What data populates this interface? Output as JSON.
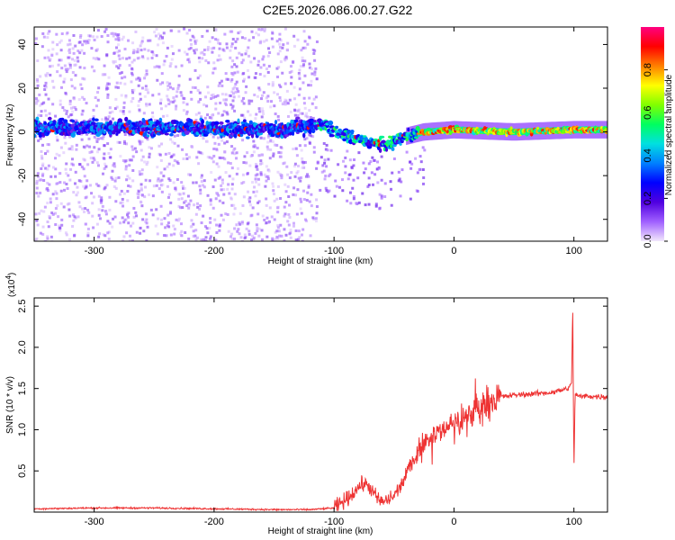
{
  "title": "C2E5.2026.086.00.27.G22",
  "chart_data": [
    {
      "type": "heatmap",
      "xlabel": "Height of straight line (km)",
      "ylabel": "Frequency (Hz)",
      "xlim": [
        -350,
        128
      ],
      "ylim": [
        -50,
        48
      ],
      "xticks": [
        -300,
        -200,
        -100,
        0,
        100
      ],
      "xtick_labels": [
        "-300",
        "-200",
        "-100",
        "0",
        "100"
      ],
      "yticks": [
        -40,
        -20,
        0,
        20,
        40
      ],
      "ytick_labels": [
        "-40",
        "-20",
        "0",
        "20",
        "40"
      ],
      "colorbar": {
        "label": "Normalized spectral amplitude",
        "range": [
          0,
          1
        ],
        "ticks": [
          0,
          0.2,
          0.4,
          0.6,
          0.8
        ],
        "tick_labels": [
          "0.0",
          "0.2",
          "0.4",
          "0.6",
          "0.8"
        ],
        "colormap": [
          "#f2e8fc",
          "#a060ff",
          "#5000e0",
          "#0000ff",
          "#0080ff",
          "#00e0e0",
          "#00ff60",
          "#80ff00",
          "#ffff00",
          "#ff8000",
          "#ff0000",
          "#ff0080"
        ]
      },
      "ridge": {
        "description_points": [
          {
            "x": -350,
            "y": 2
          },
          {
            "x": -250,
            "y": 2
          },
          {
            "x": -150,
            "y": 1
          },
          {
            "x": -110,
            "y": 3
          },
          {
            "x": -90,
            "y": -2
          },
          {
            "x": -70,
            "y": -5
          },
          {
            "x": -55,
            "y": -6
          },
          {
            "x": -40,
            "y": -2
          },
          {
            "x": -25,
            "y": 0
          },
          {
            "x": 0,
            "y": 1
          },
          {
            "x": 50,
            "y": 0
          },
          {
            "x": 100,
            "y": 1
          },
          {
            "x": 128,
            "y": 1
          }
        ]
      },
      "grid": false
    },
    {
      "type": "line",
      "xlabel": "Height of straight line (km)",
      "ylabel": "SNR (10 * v/v)",
      "scale_label": "(x10",
      "scale_exponent": "4",
      "xlim": [
        -350,
        128
      ],
      "ylim": [
        0,
        2.6
      ],
      "xticks": [
        -300,
        -200,
        -100,
        0,
        100
      ],
      "xtick_labels": [
        "-300",
        "-200",
        "-100",
        "0",
        "100"
      ],
      "yticks": [
        0.5,
        1.0,
        1.5,
        2.0,
        2.5
      ],
      "ytick_labels": [
        "0.5",
        "1.0",
        "1.5",
        "2.0",
        "2.5"
      ],
      "color": "#ee3333",
      "series": [
        {
          "x": [
            -350,
            -300,
            -250,
            -200,
            -150,
            -120,
            -100,
            -95,
            -90,
            -85,
            -80,
            -75,
            -70,
            -65,
            -60,
            -55,
            -50,
            -45,
            -40,
            -35,
            -30,
            -25,
            -20,
            -15,
            -10,
            -5,
            0,
            5,
            10,
            15,
            20,
            25,
            30,
            35,
            40,
            50,
            60,
            70,
            80,
            90,
            95,
            98,
            99,
            100,
            101,
            102,
            105,
            110,
            120,
            128
          ],
          "y": [
            0.04,
            0.05,
            0.05,
            0.04,
            0.03,
            0.03,
            0.05,
            0.1,
            0.15,
            0.22,
            0.3,
            0.35,
            0.3,
            0.18,
            0.12,
            0.15,
            0.2,
            0.3,
            0.45,
            0.6,
            0.75,
            0.85,
            0.9,
            0.95,
            1.0,
            1.05,
            1.1,
            1.1,
            1.15,
            1.2,
            1.25,
            1.3,
            1.35,
            1.38,
            1.4,
            1.42,
            1.43,
            1.44,
            1.45,
            1.48,
            1.5,
            1.55,
            2.5,
            0.5,
            1.45,
            1.42,
            1.4,
            1.41,
            1.4,
            1.4
          ]
        }
      ],
      "grid": false
    }
  ]
}
